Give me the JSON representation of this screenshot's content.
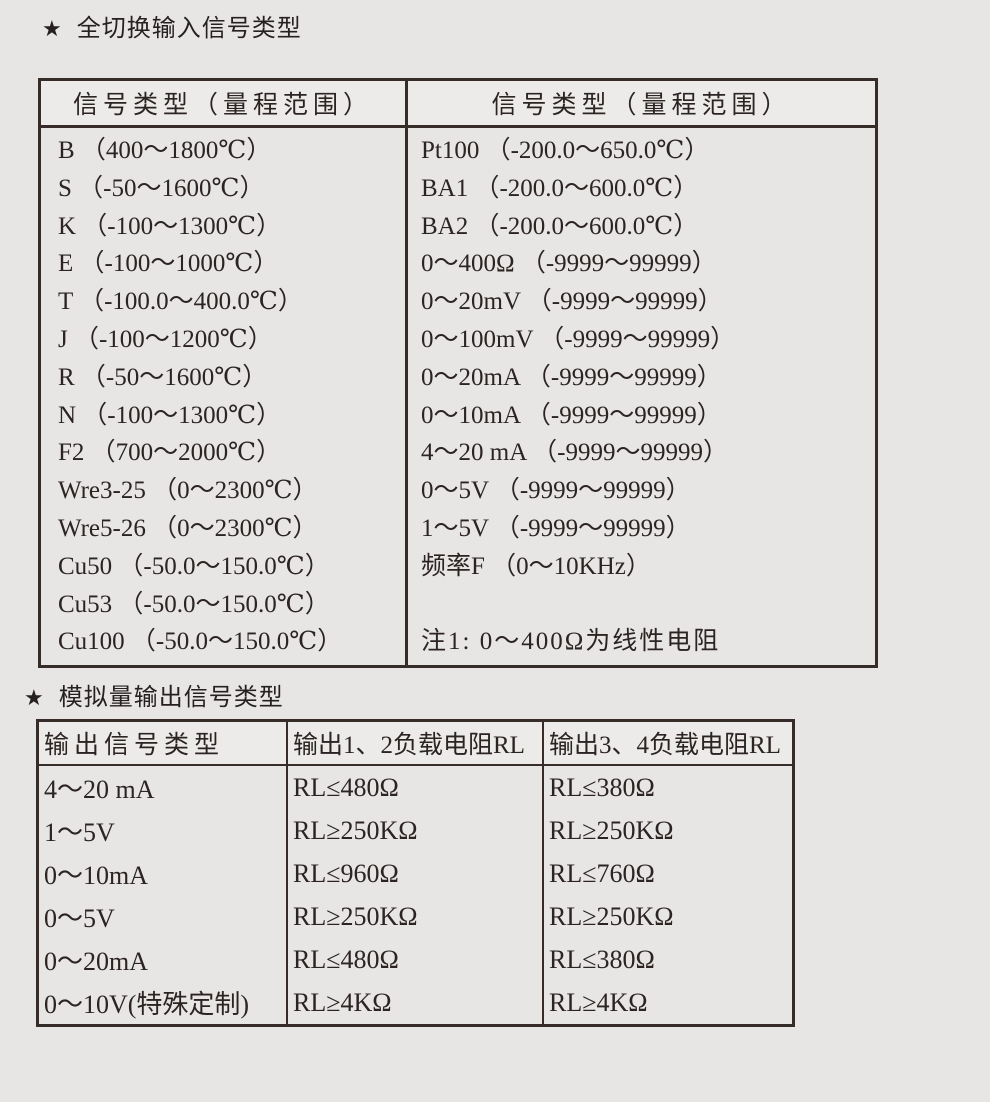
{
  "colors": {
    "background": "#e8e6e5",
    "border": "#362d29",
    "text": "#2b2423",
    "header_background": "#edebe9"
  },
  "input": {
    "star": "★",
    "title": "全切换输入信号类型",
    "headers": [
      "信号类型（量程范围）",
      "信号类型（量程范围）"
    ],
    "left_rows": [
      "B （400～1800℃）",
      "S （-50～1600℃）",
      "K （-100～1300℃）",
      "E （-100～1000℃）",
      "T （-100.0～400.0℃）",
      "J （-100～1200℃）",
      "R （-50～1600℃）",
      "N （-100～1300℃）",
      "F2 （700～2000℃）",
      "Wre3-25 （0～2300℃）",
      "Wre5-26 （0～2300℃）",
      "Cu50 （-50.0～150.0℃）",
      "Cu53 （-50.0～150.0℃）",
      "Cu100 （-50.0～150.0℃）"
    ],
    "right_rows": [
      "Pt100 （-200.0～650.0℃）",
      "BA1 （-200.0～600.0℃）",
      "BA2 （-200.0～600.0℃）",
      "0～400Ω （-9999～99999）",
      "0～20mV （-9999～99999）",
      "0～100mV （-9999～99999）",
      "0～20mA （-9999～99999）",
      "0～10mA （-9999～99999）",
      "4～20 mA （-9999～99999）",
      "0～5V （-9999～99999）",
      "1～5V （-9999～99999）",
      "频率F （0～10KHz）"
    ],
    "note": "注1: 0～400Ω为线性电阻"
  },
  "output": {
    "star": "★",
    "title": "模拟量输出信号类型",
    "headers": [
      "输出信号类型",
      "输出1、2负载电阻RL",
      "输出3、4负载电阻RL"
    ],
    "rows": [
      {
        "signal": "4～20 mA",
        "rl12": "RL≤480Ω",
        "rl34": "RL≤380Ω"
      },
      {
        "signal": "1～5V",
        "rl12": "RL≥250KΩ",
        "rl34": "RL≥250KΩ"
      },
      {
        "signal": "0～10mA",
        "rl12": "RL≤960Ω",
        "rl34": "RL≤760Ω"
      },
      {
        "signal": "0～5V",
        "rl12": "RL≥250KΩ",
        "rl34": "RL≥250KΩ"
      },
      {
        "signal": "0～20mA",
        "rl12": "RL≤480Ω",
        "rl34": "RL≤380Ω"
      },
      {
        "signal": "0～10V(特殊定制)",
        "rl12": "RL≥4KΩ",
        "rl34": "RL≥4KΩ"
      }
    ]
  }
}
